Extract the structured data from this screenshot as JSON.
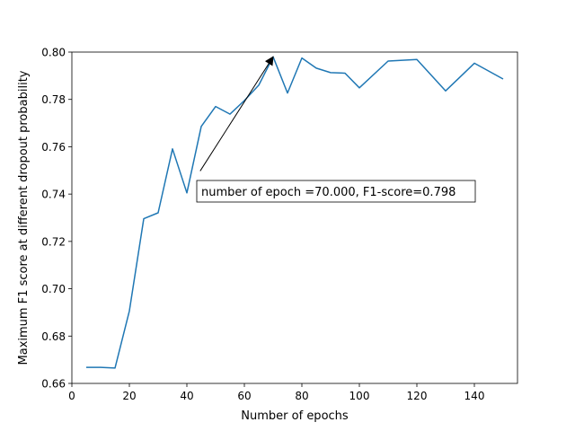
{
  "chart_data": {
    "type": "line",
    "xlabel": "Number of epochs",
    "ylabel": "Maximum F1 score at different dropout probability",
    "xlim": [
      0,
      155
    ],
    "ylim": [
      0.66,
      0.8
    ],
    "xticks": [
      0,
      20,
      40,
      60,
      80,
      100,
      120,
      140
    ],
    "yticks": [
      0.66,
      0.68,
      0.7,
      0.72,
      0.74,
      0.76,
      0.78,
      0.8
    ],
    "xtick_labels": [
      "0",
      "20",
      "40",
      "60",
      "80",
      "100",
      "120",
      "140"
    ],
    "ytick_labels": [
      "0.66",
      "0.68",
      "0.70",
      "0.72",
      "0.74",
      "0.76",
      "0.78",
      "0.80"
    ],
    "grid": false,
    "line_color": "#1f77b4",
    "x": [
      5,
      10,
      15,
      20,
      25,
      30,
      35,
      40,
      45,
      50,
      55,
      60,
      65,
      70,
      75,
      80,
      85,
      90,
      95,
      100,
      110,
      120,
      130,
      140,
      150
    ],
    "values": [
      0.6668,
      0.6668,
      0.6665,
      0.6906,
      0.7296,
      0.7321,
      0.7591,
      0.7405,
      0.7686,
      0.777,
      0.7738,
      0.7795,
      0.786,
      0.798,
      0.7827,
      0.7975,
      0.7932,
      0.7913,
      0.7911,
      0.7849,
      0.7962,
      0.7969,
      0.7836,
      0.7953,
      0.7886
    ],
    "annotation": {
      "text": "number of epoch =70.000, F1-score=0.798",
      "point": [
        70,
        0.798
      ],
      "text_anchor": [
        44,
        0.749
      ]
    }
  }
}
